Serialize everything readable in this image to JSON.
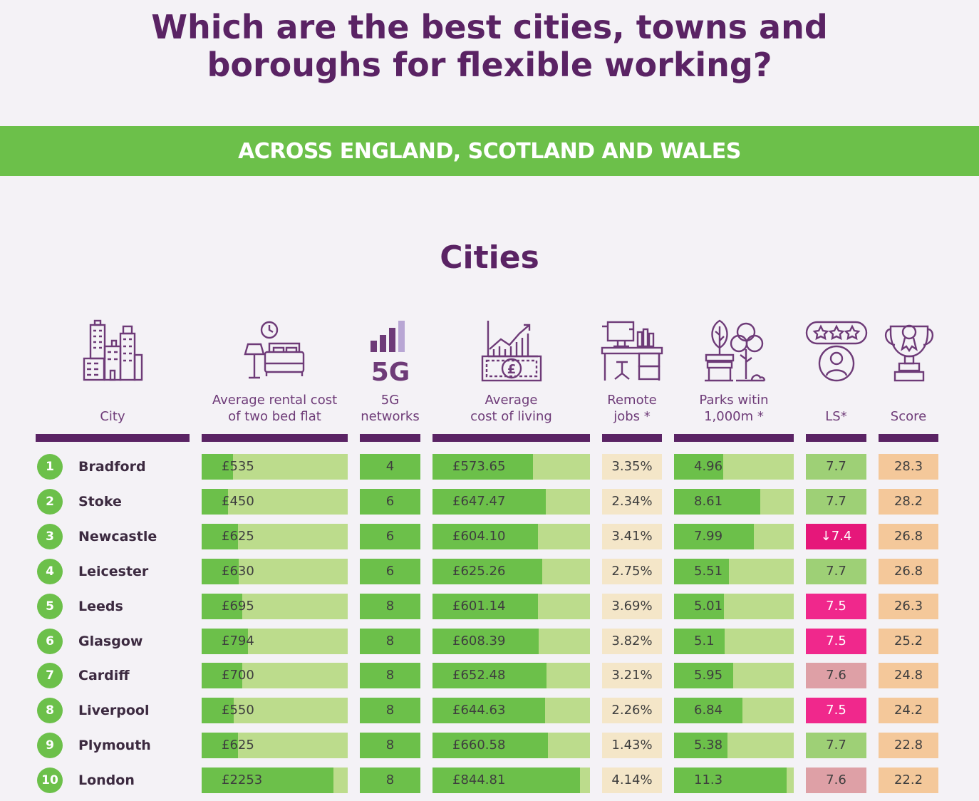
{
  "title_lines": [
    "Which are the best cities, towns and",
    "boroughs for flexible working?"
  ],
  "banner": "ACROSS ENGLAND, SCOTLAND AND WALES",
  "section_title": "Cities",
  "columns": [
    {
      "key": "city",
      "label_lines": [
        "City"
      ],
      "icon": "city-buildings-icon"
    },
    {
      "key": "rent",
      "label_lines": [
        "Average rental cost",
        "of two bed flat"
      ],
      "icon": "bedroom-icon"
    },
    {
      "key": "fiveg",
      "label_lines": [
        "5G",
        "networks"
      ],
      "icon": "5g-signal-icon"
    },
    {
      "key": "col",
      "label_lines": [
        "Average",
        "cost of living"
      ],
      "icon": "money-growth-icon"
    },
    {
      "key": "remote",
      "label_lines": [
        "Remote",
        "jobs *"
      ],
      "icon": "desk-icon"
    },
    {
      "key": "parks",
      "label_lines": [
        "Parks witin",
        "1,000m *"
      ],
      "icon": "park-icon"
    },
    {
      "key": "ls",
      "label_lines": [
        "LS*"
      ],
      "icon": "rating-person-icon"
    },
    {
      "key": "score",
      "label_lines": [
        "Score"
      ],
      "icon": "trophy-icon"
    }
  ],
  "colors": {
    "purple": "#5a2364",
    "green": "#6cc04a",
    "light_green": "#bcdc8c",
    "remote_bg": "#f4e6c8",
    "score_bg": "#f4c89a",
    "ls_green": "#9ed076",
    "ls_pink": "#f0288c",
    "ls_deep_pink": "#e6177a",
    "ls_rose": "#dea0a6"
  },
  "chart_data": {
    "type": "table",
    "columns": [
      "City",
      "Average rental cost of two bed flat",
      "5G networks",
      "Average cost of living",
      "Remote jobs *",
      "Parks witin 1,000m *",
      "LS*",
      "Score"
    ],
    "rows": [
      {
        "rank": "1",
        "city": "Bradford",
        "rent": "£535",
        "rent_value": 535,
        "fiveg": "4",
        "col": "£573.65",
        "col_value": 573.65,
        "remote": "3.35%",
        "parks": "4.96",
        "parks_value": 4.96,
        "ls": "7.7",
        "ls_status": "green",
        "score": "28.3"
      },
      {
        "rank": "2",
        "city": "Stoke",
        "rent": "£450",
        "rent_value": 450,
        "fiveg": "6",
        "col": "£647.47",
        "col_value": 647.47,
        "remote": "2.34%",
        "parks": "8.61",
        "parks_value": 8.61,
        "ls": "7.7",
        "ls_status": "green",
        "score": "28.2"
      },
      {
        "rank": "3",
        "city": "Newcastle",
        "rent": "£625",
        "rent_value": 625,
        "fiveg": "6",
        "col": "£604.10",
        "col_value": 604.1,
        "remote": "3.41%",
        "parks": "7.99",
        "parks_value": 7.99,
        "ls": "↓7.4",
        "ls_status": "deep_pink",
        "score": "26.8"
      },
      {
        "rank": "4",
        "city": "Leicester",
        "rent": "£630",
        "rent_value": 630,
        "fiveg": "6",
        "col": "£625.26",
        "col_value": 625.26,
        "remote": "2.75%",
        "parks": "5.51",
        "parks_value": 5.51,
        "ls": "7.7",
        "ls_status": "green",
        "score": "26.8"
      },
      {
        "rank": "5",
        "city": "Leeds",
        "rent": "£695",
        "rent_value": 695,
        "fiveg": "8",
        "col": "£601.14",
        "col_value": 601.14,
        "remote": "3.69%",
        "parks": "5.01",
        "parks_value": 5.01,
        "ls": "7.5",
        "ls_status": "pink",
        "score": "26.3"
      },
      {
        "rank": "6",
        "city": "Glasgow",
        "rent": "£794",
        "rent_value": 794,
        "fiveg": "8",
        "col": "£608.39",
        "col_value": 608.39,
        "remote": "3.82%",
        "parks": "5.1",
        "parks_value": 5.1,
        "ls": "7.5",
        "ls_status": "pink",
        "score": "25.2"
      },
      {
        "rank": "7",
        "city": "Cardiff",
        "rent": "£700",
        "rent_value": 700,
        "fiveg": "8",
        "col": "£652.48",
        "col_value": 652.48,
        "remote": "3.21%",
        "parks": "5.95",
        "parks_value": 5.95,
        "ls": "7.6",
        "ls_status": "rose",
        "score": "24.8"
      },
      {
        "rank": "8",
        "city": "Liverpool",
        "rent": "£550",
        "rent_value": 550,
        "fiveg": "8",
        "col": "£644.63",
        "col_value": 644.63,
        "remote": "2.26%",
        "parks": "6.84",
        "parks_value": 6.84,
        "ls": "7.5",
        "ls_status": "pink",
        "score": "24.2"
      },
      {
        "rank": "9",
        "city": "Plymouth",
        "rent": "£625",
        "rent_value": 625,
        "fiveg": "8",
        "col": "£660.58",
        "col_value": 660.58,
        "remote": "1.43%",
        "parks": "5.38",
        "parks_value": 5.38,
        "ls": "7.7",
        "ls_status": "green",
        "score": "22.8"
      },
      {
        "rank": "10",
        "city": "London",
        "rent": "£2253",
        "rent_value": 2253,
        "fiveg": "8",
        "col": "£844.81",
        "col_value": 844.81,
        "remote": "4.14%",
        "parks": "11.3",
        "parks_value": 11.3,
        "ls": "7.6",
        "ls_status": "rose",
        "score": "22.2"
      }
    ],
    "bar_scales": {
      "rent": 2500,
      "col": 900,
      "parks": 12
    }
  }
}
